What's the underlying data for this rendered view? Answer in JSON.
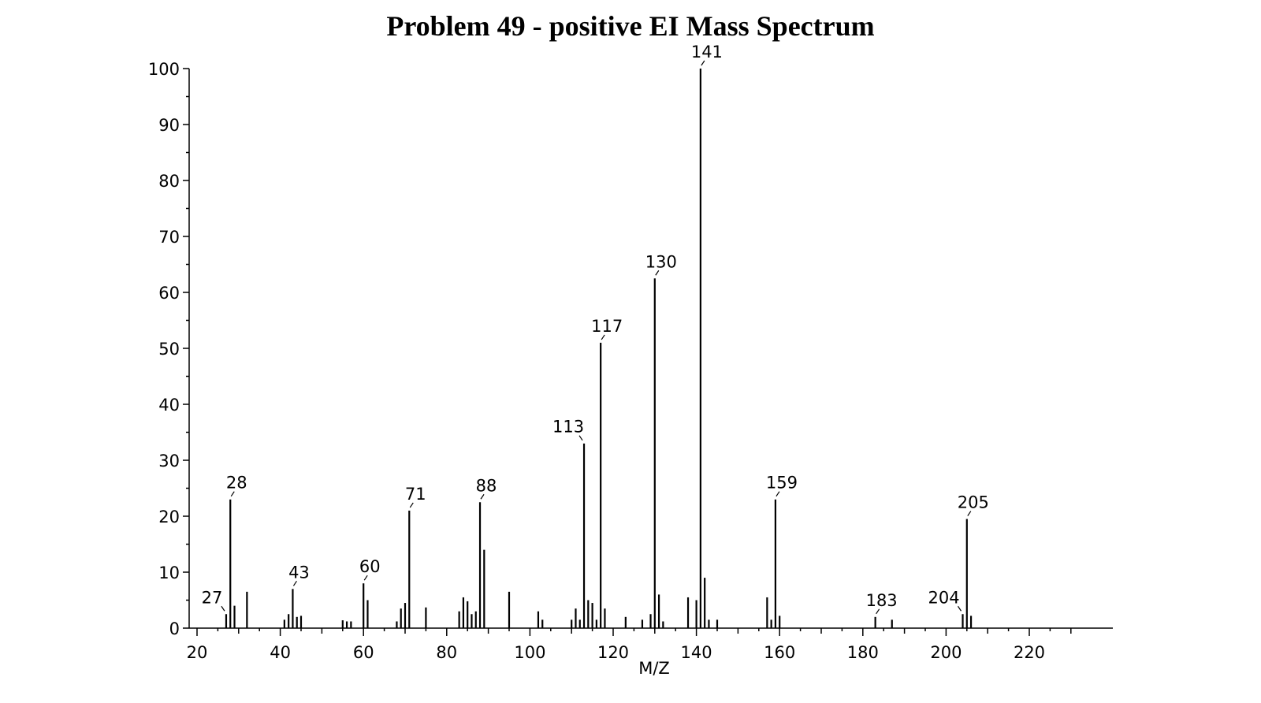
{
  "chart_data": {
    "type": "bar",
    "title": "Problem 49 - positive EI Mass Spectrum",
    "xlabel": "M/Z",
    "ylabel": "",
    "xlim": [
      10,
      230
    ],
    "ylim": [
      0,
      100
    ],
    "x_ticks": [
      20,
      40,
      60,
      80,
      100,
      120,
      140,
      160,
      180,
      200,
      220
    ],
    "y_ticks": [
      0,
      10,
      20,
      30,
      40,
      50,
      60,
      70,
      80,
      90,
      100
    ],
    "grid": false,
    "peaks": [
      {
        "mz": 27,
        "intensity": 2.5,
        "label": "27"
      },
      {
        "mz": 28,
        "intensity": 23,
        "label": "28"
      },
      {
        "mz": 29,
        "intensity": 4
      },
      {
        "mz": 32,
        "intensity": 6.5
      },
      {
        "mz": 41,
        "intensity": 1.5
      },
      {
        "mz": 42,
        "intensity": 2.5
      },
      {
        "mz": 43,
        "intensity": 7,
        "label": "43"
      },
      {
        "mz": 44,
        "intensity": 2
      },
      {
        "mz": 45,
        "intensity": 2.2
      },
      {
        "mz": 55,
        "intensity": 1.4
      },
      {
        "mz": 56,
        "intensity": 1.2
      },
      {
        "mz": 57,
        "intensity": 1.2
      },
      {
        "mz": 60,
        "intensity": 8,
        "label": "60"
      },
      {
        "mz": 61,
        "intensity": 5
      },
      {
        "mz": 68,
        "intensity": 1.2
      },
      {
        "mz": 69,
        "intensity": 3.5
      },
      {
        "mz": 70,
        "intensity": 4.5
      },
      {
        "mz": 71,
        "intensity": 21,
        "label": "71"
      },
      {
        "mz": 75,
        "intensity": 3.7
      },
      {
        "mz": 83,
        "intensity": 3
      },
      {
        "mz": 84,
        "intensity": 5.5
      },
      {
        "mz": 85,
        "intensity": 4.8
      },
      {
        "mz": 86,
        "intensity": 2.5
      },
      {
        "mz": 87,
        "intensity": 3
      },
      {
        "mz": 88,
        "intensity": 22.5,
        "label": "88"
      },
      {
        "mz": 89,
        "intensity": 14
      },
      {
        "mz": 95,
        "intensity": 6.5
      },
      {
        "mz": 102,
        "intensity": 3
      },
      {
        "mz": 103,
        "intensity": 1.5
      },
      {
        "mz": 110,
        "intensity": 1.5
      },
      {
        "mz": 111,
        "intensity": 3.5
      },
      {
        "mz": 112,
        "intensity": 1.5
      },
      {
        "mz": 113,
        "intensity": 33,
        "label": "113"
      },
      {
        "mz": 114,
        "intensity": 5
      },
      {
        "mz": 115,
        "intensity": 4.5
      },
      {
        "mz": 116,
        "intensity": 1.5
      },
      {
        "mz": 117,
        "intensity": 51,
        "label": "117"
      },
      {
        "mz": 118,
        "intensity": 3.5
      },
      {
        "mz": 123,
        "intensity": 2
      },
      {
        "mz": 127,
        "intensity": 1.5
      },
      {
        "mz": 129,
        "intensity": 2.5
      },
      {
        "mz": 130,
        "intensity": 62.5,
        "label": "130"
      },
      {
        "mz": 131,
        "intensity": 6
      },
      {
        "mz": 132,
        "intensity": 1.2
      },
      {
        "mz": 138,
        "intensity": 5.5
      },
      {
        "mz": 140,
        "intensity": 5
      },
      {
        "mz": 141,
        "intensity": 100,
        "label": "141"
      },
      {
        "mz": 142,
        "intensity": 9
      },
      {
        "mz": 143,
        "intensity": 1.5
      },
      {
        "mz": 145,
        "intensity": 1.5
      },
      {
        "mz": 157,
        "intensity": 5.5
      },
      {
        "mz": 158,
        "intensity": 1.5
      },
      {
        "mz": 159,
        "intensity": 23,
        "label": "159"
      },
      {
        "mz": 160,
        "intensity": 2.2
      },
      {
        "mz": 183,
        "intensity": 2,
        "label": "183"
      },
      {
        "mz": 187,
        "intensity": 1.5
      },
      {
        "mz": 204,
        "intensity": 2.5,
        "label": "204"
      },
      {
        "mz": 205,
        "intensity": 19.5,
        "label": "205"
      },
      {
        "mz": 206,
        "intensity": 2.2
      }
    ]
  }
}
